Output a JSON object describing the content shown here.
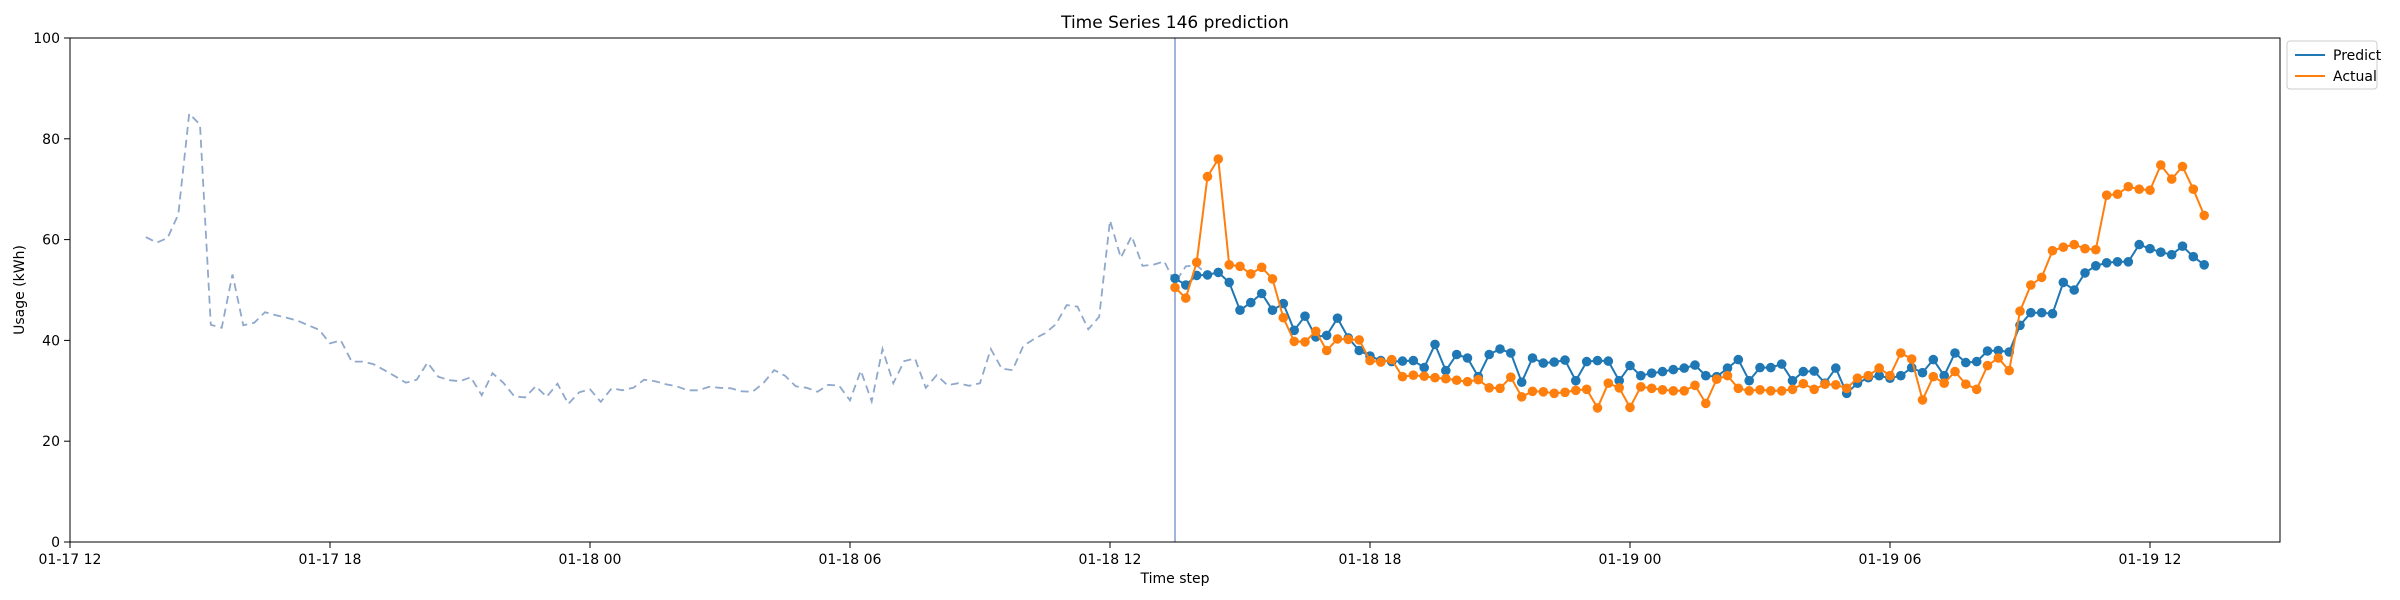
{
  "chart_data": {
    "type": "line",
    "title": "Time Series 146 prediction",
    "xlabel": "Time step",
    "ylabel": "Usage (kWh)",
    "ylim": [
      0,
      100
    ],
    "y_ticks": [
      0,
      20,
      40,
      60,
      80,
      100
    ],
    "x_ticks": [
      "01-17 12",
      "01-17 18",
      "01-18 00",
      "01-18 06",
      "01-18 12",
      "01-18 18",
      "01-19 00",
      "01-19 06",
      "01-19 12"
    ],
    "x_start_label": "01-17 12",
    "x_end_label": "01-19 15",
    "interval_minutes": 15,
    "legend_position": "upper right, outside",
    "grid": false,
    "colors": {
      "history": "#8fa8cc",
      "predict": "#1f77b4",
      "actual": "#ff7f0e",
      "divider": "#6f8fc8"
    },
    "divider_x": "01-18 13:30",
    "history": {
      "x_start": "01-17 13:45",
      "values": [
        60.5,
        59.4,
        60.3,
        65.0,
        85.0,
        82.8,
        43.1,
        42.5,
        53.1,
        43.0,
        43.5,
        45.6,
        45.0,
        44.5,
        43.9,
        43.0,
        42.1,
        39.4,
        40.0,
        35.8,
        35.8,
        35.3,
        34.1,
        32.9,
        31.6,
        32.2,
        35.6,
        32.8,
        32.1,
        31.9,
        32.7,
        29.1,
        33.5,
        31.6,
        28.9,
        28.7,
        30.9,
        28.8,
        31.4,
        27.4,
        29.7,
        30.3,
        27.8,
        30.5,
        30.1,
        30.6,
        32.2,
        31.9,
        31.3,
        30.9,
        30.1,
        30.1,
        30.8,
        30.6,
        30.5,
        29.9,
        29.8,
        31.5,
        34.1,
        33.0,
        30.9,
        30.6,
        29.8,
        31.2,
        31.0,
        28.1,
        34.0,
        27.9,
        38.3,
        31.5,
        35.9,
        36.4,
        30.6,
        33.1,
        31.1,
        31.5,
        31.0,
        31.5,
        38.3,
        34.4,
        34.1,
        38.9,
        40.3,
        41.4,
        43.2,
        47.0,
        46.7,
        42.2,
        44.7,
        63.8,
        56.4,
        60.7,
        54.8,
        55.0,
        55.7,
        51.4,
        54.7,
        54.9,
        53.0
      ]
    },
    "series": [
      {
        "name": "Predict",
        "x_start": "01-18 13:30",
        "values": [
          52.3,
          51.0,
          52.9,
          53.0,
          53.5,
          51.5,
          46.0,
          47.5,
          49.3,
          46.0,
          47.3,
          42.0,
          44.8,
          40.7,
          41.0,
          44.4,
          40.5,
          38.0,
          36.9,
          36.0,
          35.8,
          35.9,
          36.0,
          34.6,
          39.2,
          34.0,
          37.2,
          36.5,
          32.8,
          37.2,
          38.3,
          37.5,
          31.7,
          36.5,
          35.5,
          35.7,
          36.1,
          32.0,
          35.8,
          36.0,
          35.9,
          32.0,
          35.0,
          33.0,
          33.5,
          33.8,
          34.2,
          34.5,
          35.1,
          33.0,
          32.8,
          34.5,
          36.2,
          32.0,
          34.6,
          34.6,
          35.3,
          32.0,
          33.8,
          33.9,
          31.5,
          34.5,
          29.5,
          31.5,
          32.6,
          33.0,
          32.5,
          33.0,
          34.6,
          33.6,
          36.2,
          33.0,
          37.5,
          35.6,
          35.8,
          37.9,
          38.0,
          37.7,
          43.0,
          45.5,
          45.5,
          45.3,
          51.5,
          50.0,
          53.4,
          54.8,
          55.4,
          55.6,
          55.6,
          59.0,
          58.2,
          57.5,
          57.0,
          58.7,
          56.6,
          55.0
        ]
      },
      {
        "name": "Actual",
        "x_start": "01-18 13:30",
        "values": [
          50.5,
          48.4,
          55.5,
          72.5,
          76.0,
          55.0,
          54.7,
          53.2,
          54.5,
          52.2,
          44.5,
          39.8,
          39.7,
          41.8,
          38.0,
          40.3,
          40.2,
          40.1,
          36.0,
          35.7,
          36.2,
          32.8,
          33.1,
          32.9,
          32.6,
          32.4,
          32.1,
          31.8,
          32.2,
          30.6,
          30.5,
          32.7,
          28.8,
          29.9,
          29.8,
          29.5,
          29.7,
          30.1,
          30.3,
          26.6,
          31.5,
          30.6,
          26.7,
          30.8,
          30.5,
          30.2,
          30.0,
          30.0,
          31.1,
          27.5,
          32.3,
          33.0,
          30.5,
          30.0,
          30.2,
          30.0,
          30.0,
          30.3,
          31.4,
          30.3,
          31.3,
          31.2,
          30.5,
          32.5,
          33.0,
          34.5,
          33.0,
          37.5,
          36.3,
          28.2,
          32.8,
          31.5,
          33.8,
          31.3,
          30.3,
          35.0,
          36.5,
          34.0,
          45.8,
          51.0,
          52.5,
          57.8,
          58.5,
          59.0,
          58.2,
          58.0,
          68.8,
          69.0,
          70.5,
          70.0,
          69.8,
          74.8,
          72.0,
          74.5,
          70.0,
          64.8
        ]
      }
    ]
  }
}
